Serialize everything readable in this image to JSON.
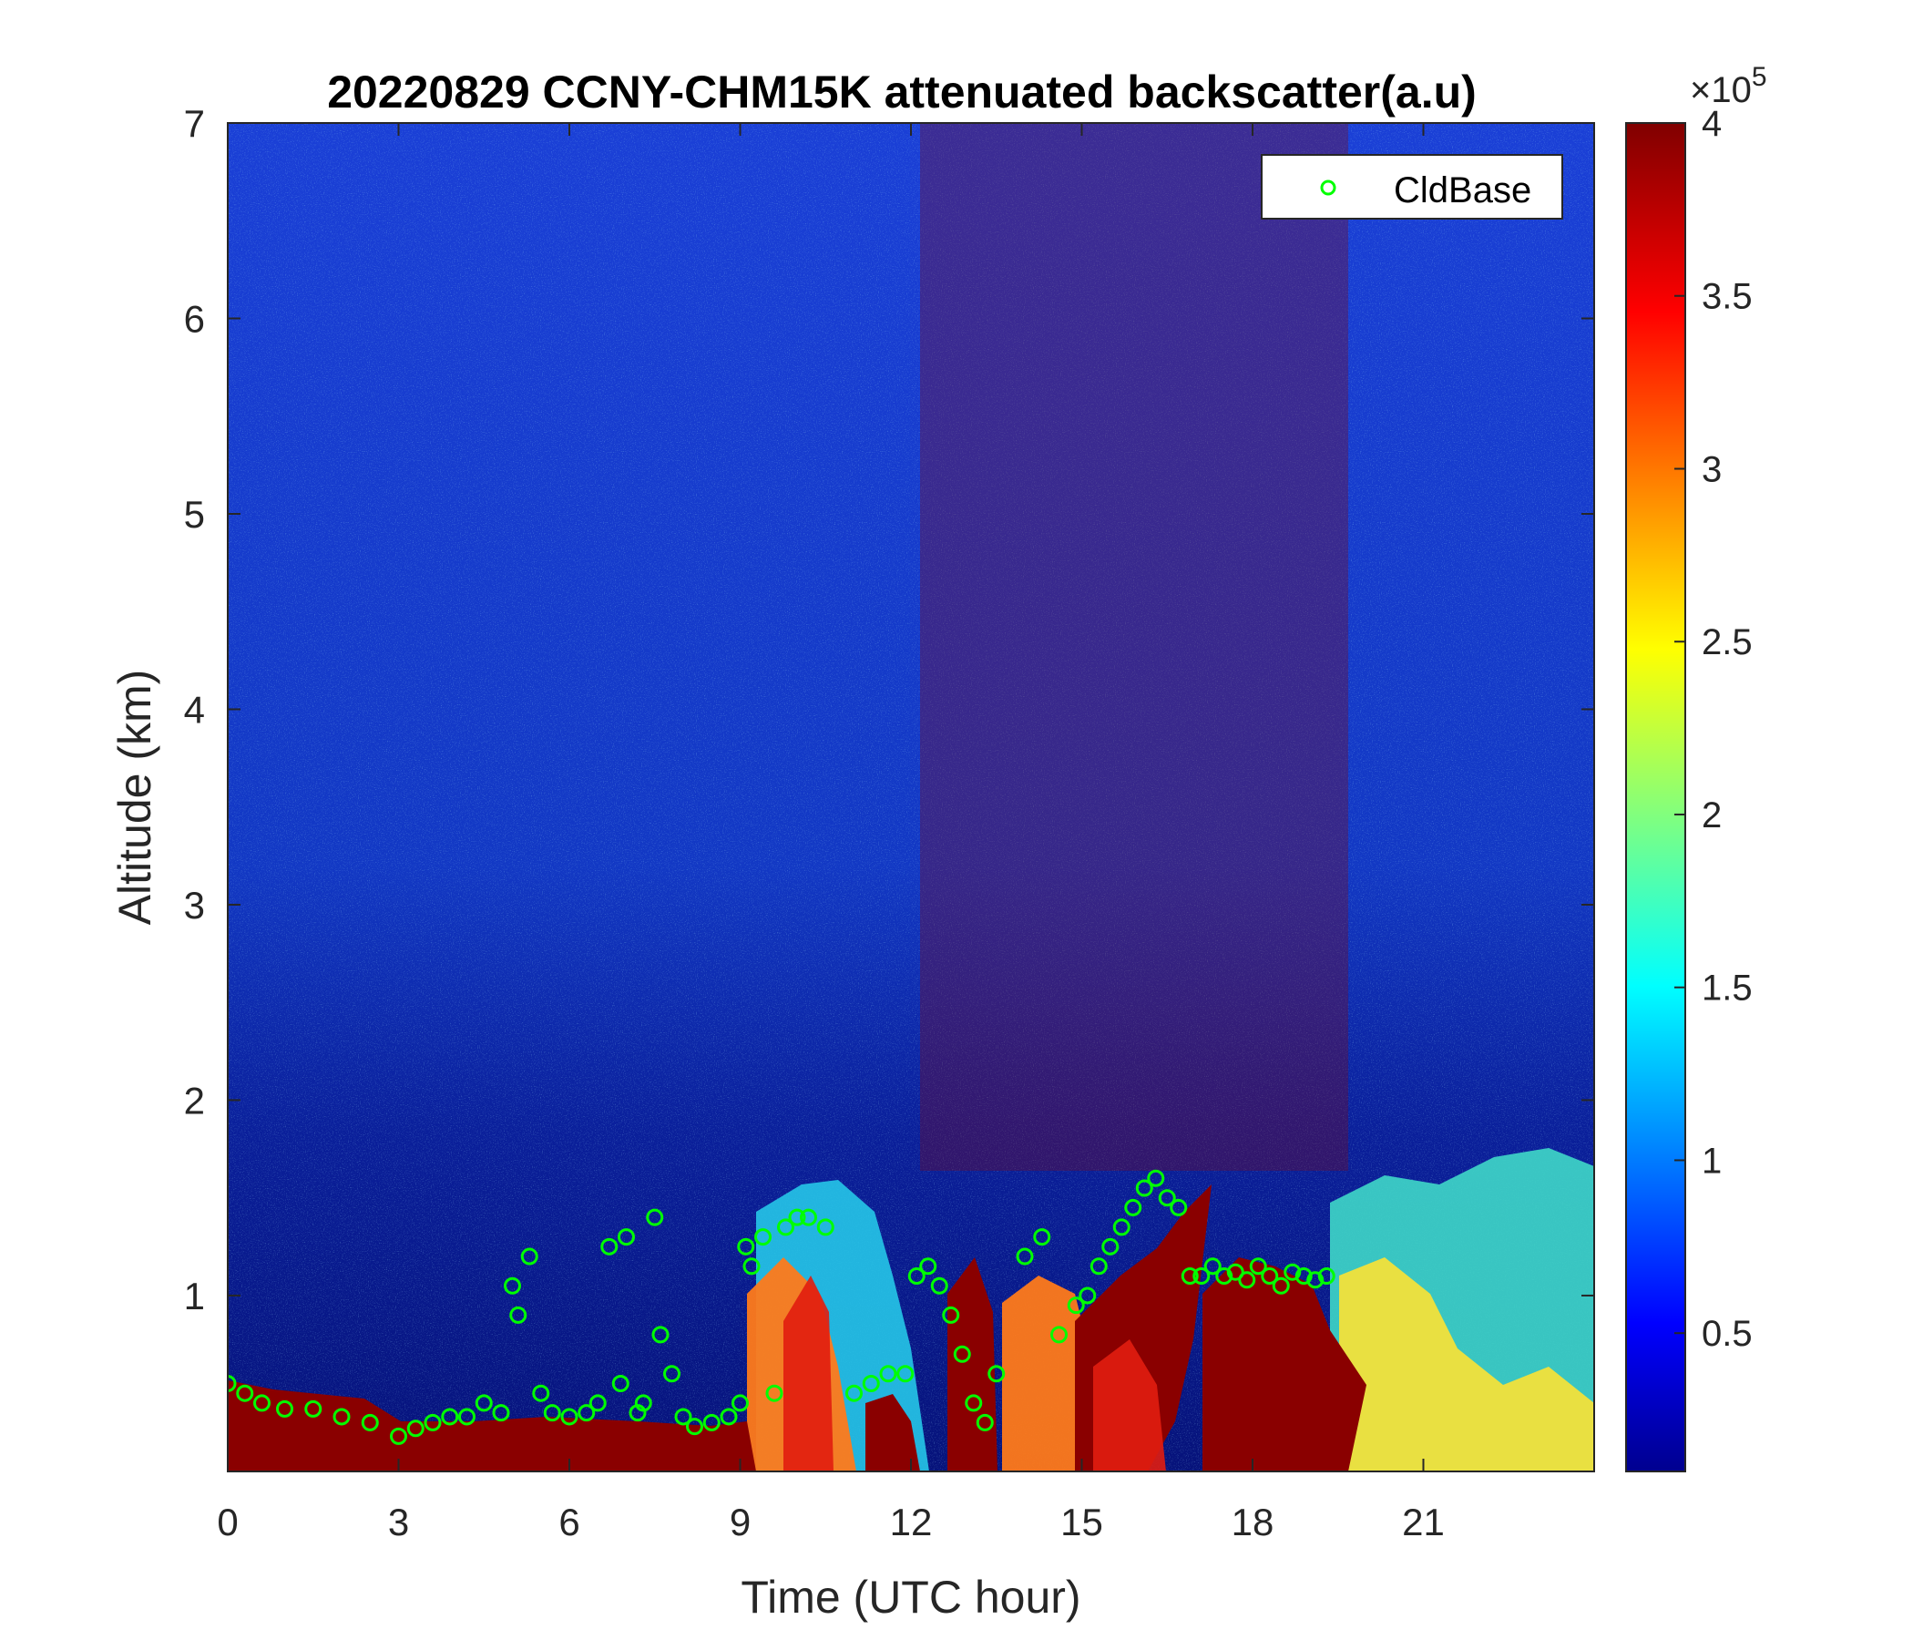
{
  "chart_data": {
    "type": "heatmap",
    "title": "20220829 CCNY-CHM15K attenuated backscatter(a.u)",
    "xlabel": "Time (UTC hour)",
    "ylabel": "Altitude (km)",
    "xlim": [
      0,
      24
    ],
    "ylim": [
      0.1,
      7
    ],
    "xticks": [
      0,
      3,
      6,
      9,
      12,
      15,
      18,
      21
    ],
    "yticks": [
      1,
      2,
      3,
      4,
      5,
      6,
      7
    ],
    "colormap": "jet",
    "colorbar": {
      "range": [
        0.1,
        4
      ],
      "ticks": [
        0.5,
        1,
        1.5,
        2,
        2.5,
        3,
        3.5,
        4
      ],
      "exponent_base": "×10",
      "exponent_power": "5"
    },
    "legend": {
      "location": "top-right",
      "entries": [
        "CldBase"
      ]
    },
    "series": [
      {
        "name": "CldBase",
        "marker": "circle",
        "color": "#00ff00",
        "x": [
          0.0,
          0.3,
          0.6,
          1.0,
          1.5,
          2.0,
          2.5,
          3.0,
          3.3,
          3.6,
          3.9,
          4.2,
          4.5,
          4.8,
          5.0,
          5.1,
          5.3,
          5.5,
          5.7,
          6.0,
          6.3,
          6.5,
          6.7,
          6.9,
          7.0,
          7.2,
          7.3,
          7.5,
          7.6,
          7.8,
          8.0,
          8.2,
          8.5,
          8.8,
          9.0,
          9.1,
          9.2,
          9.4,
          9.6,
          9.8,
          10.0,
          10.2,
          10.5,
          11.0,
          11.3,
          11.6,
          11.9,
          12.1,
          12.3,
          12.5,
          12.7,
          12.9,
          13.1,
          13.3,
          13.5,
          14.0,
          14.3,
          14.6,
          14.9,
          15.1,
          15.3,
          15.5,
          15.7,
          15.9,
          16.1,
          16.3,
          16.5,
          16.7,
          16.9,
          17.1,
          17.3,
          17.5,
          17.7,
          17.9,
          18.1,
          18.3,
          18.5,
          18.7,
          18.9,
          19.1,
          19.3
        ],
        "y": [
          0.55,
          0.5,
          0.45,
          0.42,
          0.42,
          0.38,
          0.35,
          0.28,
          0.32,
          0.35,
          0.38,
          0.38,
          0.45,
          0.4,
          1.05,
          0.9,
          1.2,
          0.5,
          0.4,
          0.38,
          0.4,
          0.45,
          1.25,
          0.55,
          1.3,
          0.4,
          0.45,
          1.4,
          0.8,
          0.6,
          0.38,
          0.33,
          0.35,
          0.38,
          0.45,
          1.25,
          1.15,
          1.3,
          0.5,
          1.35,
          1.4,
          1.4,
          1.35,
          0.5,
          0.55,
          0.6,
          0.6,
          1.1,
          1.15,
          1.05,
          0.9,
          0.7,
          0.45,
          0.35,
          0.6,
          1.2,
          1.3,
          0.8,
          0.95,
          1.0,
          1.15,
          1.25,
          1.35,
          1.45,
          1.55,
          1.6,
          1.5,
          1.45,
          1.1,
          1.1,
          1.15,
          1.1,
          1.12,
          1.08,
          1.15,
          1.1,
          1.05,
          1.12,
          1.1,
          1.08,
          1.1
        ]
      }
    ]
  }
}
